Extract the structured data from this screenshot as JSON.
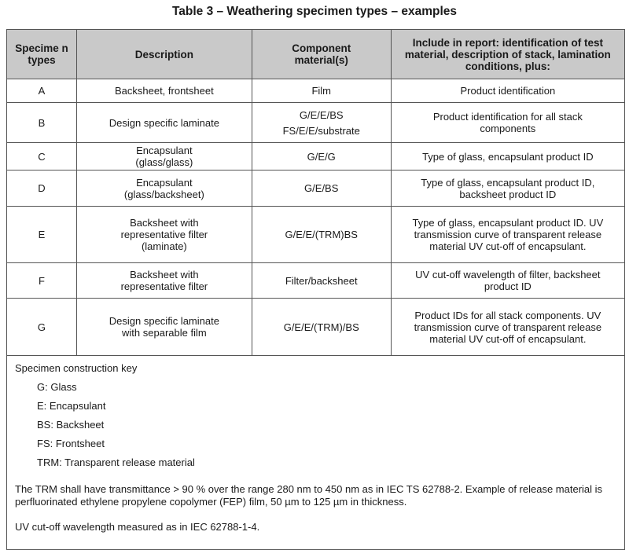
{
  "title": "Table 3 – Weathering specimen types – examples",
  "header": [
    "Specime n types",
    "Description",
    "Component material(s)",
    "Include in report: identification of test material, description of stack, lamination conditions, plus:"
  ],
  "rows": [
    {
      "type": "A",
      "description": "Backsheet, frontsheet",
      "materials": [
        "Film"
      ],
      "report": "Product identification"
    },
    {
      "type": "B",
      "description": "Design specific laminate",
      "materials": [
        "G/E/E/BS",
        "FS/E/E/substrate"
      ],
      "report": "Product identification for all stack components"
    },
    {
      "type": "C",
      "description": "Encapsulant (glass/glass)",
      "materials": [
        "G/E/G"
      ],
      "report": "Type of glass, encapsulant product ID"
    },
    {
      "type": "D",
      "description": "Encapsulant (glass/backsheet)",
      "materials": [
        "G/E/BS"
      ],
      "report": "Type of glass, encapsulant product ID, backsheet product ID"
    },
    {
      "type": "E",
      "description": "Backsheet with representative filter (laminate)",
      "materials": [
        "G/E/E/(TRM)BS"
      ],
      "report": "Type of glass, encapsulant product ID. UV transmission curve of transparent release material UV cut-off of encapsulant."
    },
    {
      "type": "F",
      "description": "Backsheet with representative filter",
      "materials": [
        "Filter/backsheet"
      ],
      "report": "UV cut-off wavelength of filter, backsheet product ID"
    },
    {
      "type": "G",
      "description": "Design specific laminate with separable film",
      "materials": [
        "G/E/E/(TRM)/BS"
      ],
      "report": "Product IDs for all stack components. UV transmission curve of transparent release material UV cut-off of encapsulant."
    }
  ],
  "key": {
    "heading": "Specimen construction key",
    "items": [
      "G:  Glass",
      "E:  Encapsulant",
      "BS:  Backsheet",
      "FS:  Frontsheet",
      "TRM:  Transparent release material"
    ],
    "note1": "The TRM shall have transmittance > 90 % over the range 280 nm to 450 nm as in IEC TS 62788-2.  Example of release material is perfluorinated ethylene propylene copolymer (FEP) film, 50 µm to 125 µm in thickness.",
    "note2": "UV cut-off wavelength measured as in IEC 62788-1-4."
  }
}
